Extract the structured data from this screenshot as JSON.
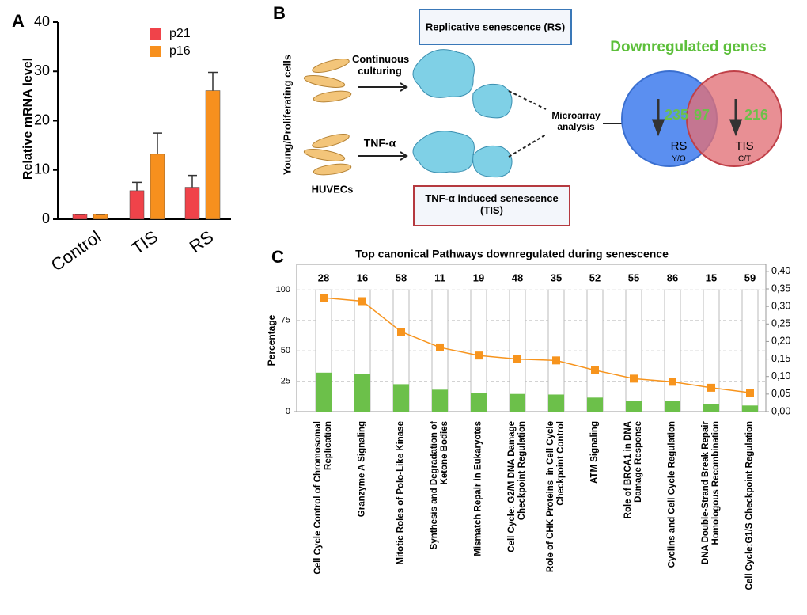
{
  "chart_data": [
    {
      "type": "bar",
      "panel": "A",
      "ylabel": "Relative mRNA level",
      "categories": [
        "Control",
        "TIS",
        "RS"
      ],
      "series": [
        {
          "name": "p21",
          "color": "#f0434a",
          "values": [
            1,
            5.8,
            6.5
          ],
          "errors": [
            0,
            1.7,
            2.4
          ]
        },
        {
          "name": "p16",
          "color": "#f7901e",
          "values": [
            1,
            13.2,
            26.1
          ],
          "errors": [
            0,
            4.3,
            3.7
          ]
        }
      ],
      "ylim": [
        0,
        40
      ],
      "yticks": [
        0,
        10,
        20,
        30,
        40
      ]
    },
    {
      "type": "bar_line",
      "panel": "C",
      "title": "Top canonical Pathways downregulated during senescence",
      "ylabel": "Percentage",
      "categories": [
        "Cell Cycle Control of Chromosomal\nReplication",
        "Granzyme A Signaling",
        "Mitotic Roles of Polo-Like Kinase",
        "Synthesis and Degradation of\nKetone Bodies",
        "Mismatch Repair in Eukaryotes",
        "Cell Cycle: G2/M DNA Damage\nCheckpoint Regulation",
        "Role of CHK Proteins  in Cell Cycle\nCheckpoint Control",
        "ATM Signaling",
        "Role of BRCA1 in DNA\nDamage Response",
        "Cyclins and Cell Cycle Regulation",
        "DNA Double-Strand Break Repair\nHomologous Recombination",
        "Cell Cycle:G1/S Checkpoint Regulation"
      ],
      "totals": [
        28,
        16,
        58,
        11,
        19,
        48,
        35,
        52,
        55,
        86,
        15,
        59
      ],
      "full": 100,
      "series": [
        {
          "color": "#6cc04a",
          "values": [
            32,
            31,
            22.5,
            18,
            15.5,
            14.5,
            14,
            11.5,
            9,
            8.5,
            6.5,
            5
          ]
        },
        {
          "color": "#f7941d",
          "axis": "y2",
          "values": [
            0.325,
            0.315,
            0.228,
            0.183,
            0.16,
            0.15,
            0.146,
            0.118,
            0.094,
            0.085,
            0.068,
            0.054
          ]
        }
      ],
      "ylim": [
        0,
        121
      ],
      "yticks": [
        0,
        25,
        50,
        75,
        100
      ],
      "grid": true,
      "y2lim": [
        0,
        0.42
      ],
      "y2ticks": [
        {
          "value": 0,
          "label": "0,00"
        },
        {
          "value": 0.05,
          "label": "0,05"
        },
        {
          "value": 0.1,
          "label": "0,10"
        },
        {
          "value": 0.15,
          "label": "0,15"
        },
        {
          "value": 0.2,
          "label": "0,20"
        },
        {
          "value": 0.25,
          "label": "0,25"
        },
        {
          "value": 0.3,
          "label": "0,30"
        },
        {
          "value": 0.35,
          "label": "0,35"
        },
        {
          "value": 0.4,
          "label": "0,40"
        }
      ]
    }
  ],
  "diagram": {
    "panel": "B",
    "side_label": "Young/Proliferating cells",
    "cells": "HUVECs",
    "arrow_top": "Continuous\nculturing",
    "arrow_bottom": "TNF-α",
    "box_top": "Replicative senescence (RS)",
    "box_bottom": "TNF-α induced senescence\n(TIS)",
    "analysis": "Microarray\nanalysis",
    "venn_title": "Downregulated genes",
    "venn": {
      "left_only": "235",
      "both": "97",
      "right_only": "216",
      "left_name": "RS",
      "left_sub": "Y/O",
      "right_name": "TIS",
      "right_sub": "C/T"
    }
  }
}
